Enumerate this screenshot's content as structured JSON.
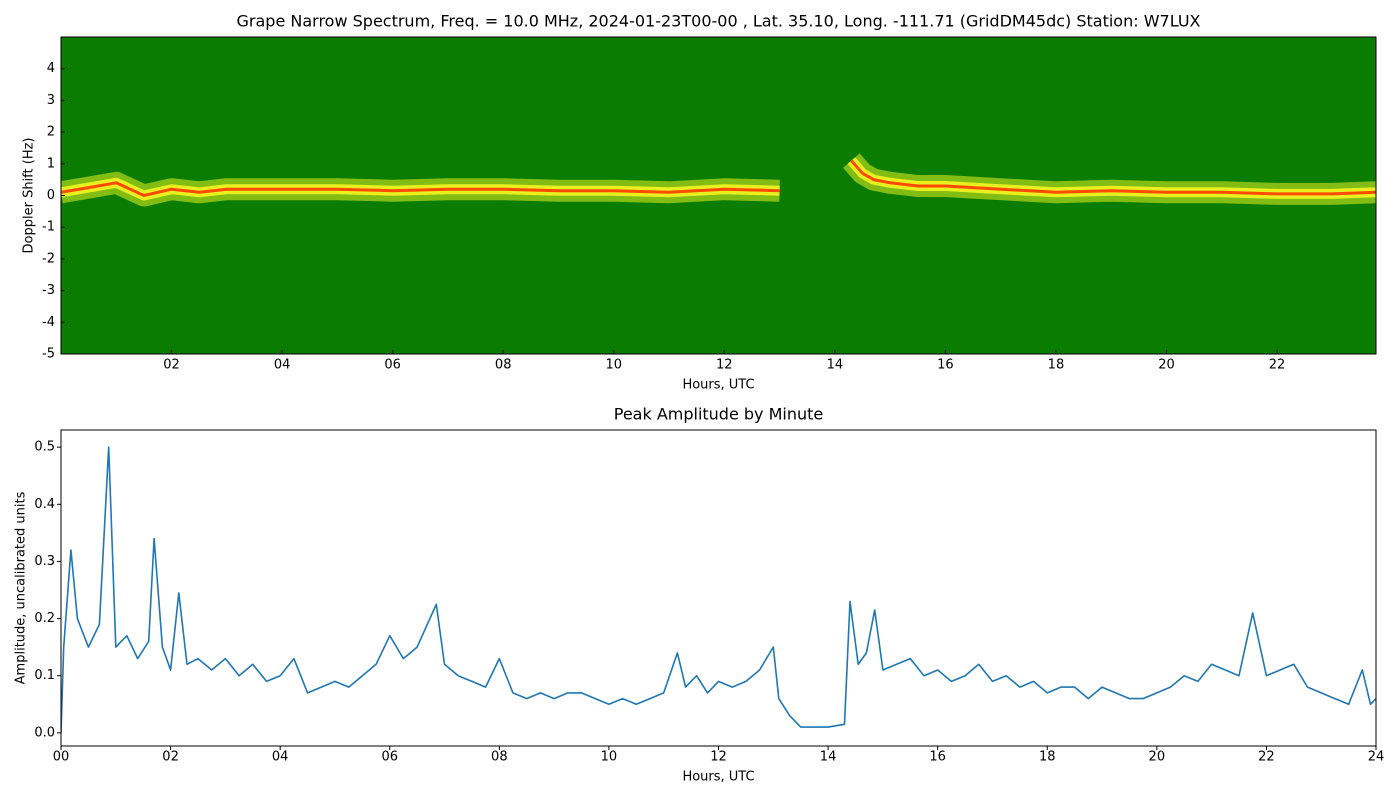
{
  "chart_data": [
    {
      "type": "spectrogram",
      "title": "Grape Narrow Spectrum, Freq. = 10.0 MHz, 2024-01-23T00-00 , Lat.  35.10, Long. -111.71 (GridDM45dc) Station: W7LUX",
      "x_label": "Hours, UTC",
      "y_label": "Doppler Shift (Hz)",
      "background_color": "#0a7d00",
      "band_color": "#e8f020",
      "xlim": [
        0,
        23.79
      ],
      "ylim": [
        -5,
        5
      ],
      "xticks": [
        {
          "value": 2,
          "label": "02"
        },
        {
          "value": 4,
          "label": "04"
        },
        {
          "value": 6,
          "label": "06"
        },
        {
          "value": 8,
          "label": "08"
        },
        {
          "value": 10,
          "label": "10"
        },
        {
          "value": 12,
          "label": "12"
        },
        {
          "value": 14,
          "label": "14"
        },
        {
          "value": 16,
          "label": "16"
        },
        {
          "value": 18,
          "label": "18"
        },
        {
          "value": 20,
          "label": "20"
        },
        {
          "value": 22,
          "label": "22"
        }
      ],
      "yticks": [
        -5,
        -4,
        -3,
        -2,
        -1,
        0,
        1,
        2,
        3,
        4
      ],
      "x": [
        0,
        0.5,
        1,
        1.5,
        2,
        2.5,
        3,
        4,
        5,
        6,
        7,
        8,
        9,
        10,
        11,
        12,
        13,
        13.3,
        14.3,
        14.5,
        14.7,
        15,
        15.5,
        16,
        16.5,
        17,
        18,
        19,
        20,
        21,
        22,
        23,
        23.79
      ],
      "series": [
        {
          "color": "#ff4a00",
          "values": [
            0.1,
            0.25,
            0.4,
            0,
            0.2,
            0.1,
            0.2,
            0.2,
            0.2,
            0.15,
            0.2,
            0.2,
            0.15,
            0.15,
            0.1,
            0.2,
            0.15,
            null,
            1.1,
            0.7,
            0.5,
            0.4,
            0.3,
            0.3,
            0.25,
            0.2,
            0.1,
            0.15,
            0.1,
            0.1,
            0.05,
            0.05,
            0.1
          ]
        }
      ]
    },
    {
      "type": "line",
      "title": "Peak Amplitude by Minute",
      "x_label": "Hours, UTC",
      "y_label": "Amplitude, uncalibrated units",
      "xlim": [
        0,
        24
      ],
      "ylim": [
        -0.023,
        0.53
      ],
      "xticks": [
        {
          "value": 0,
          "label": "00"
        },
        {
          "value": 2,
          "label": "02"
        },
        {
          "value": 4,
          "label": "04"
        },
        {
          "value": 6,
          "label": "06"
        },
        {
          "value": 8,
          "label": "08"
        },
        {
          "value": 10,
          "label": "10"
        },
        {
          "value": 12,
          "label": "12"
        },
        {
          "value": 14,
          "label": "14"
        },
        {
          "value": 16,
          "label": "16"
        },
        {
          "value": 18,
          "label": "18"
        },
        {
          "value": 20,
          "label": "20"
        },
        {
          "value": 22,
          "label": "22"
        },
        {
          "value": 24,
          "label": "24"
        }
      ],
      "yticks": [
        {
          "value": 0,
          "label": "0.0"
        },
        0.1,
        0.2,
        0.3,
        0.4,
        0.5
      ],
      "x": [
        0,
        0.05,
        0.18,
        0.3,
        0.5,
        0.7,
        0.87,
        1.0,
        1.2,
        1.4,
        1.6,
        1.7,
        1.85,
        2.0,
        2.15,
        2.3,
        2.5,
        2.75,
        3.0,
        3.25,
        3.5,
        3.75,
        4.0,
        4.25,
        4.5,
        4.75,
        5.0,
        5.25,
        5.5,
        5.75,
        6.0,
        6.25,
        6.5,
        6.85,
        7.0,
        7.25,
        7.5,
        7.75,
        8.0,
        8.25,
        8.5,
        8.75,
        9.0,
        9.25,
        9.5,
        9.75,
        10.0,
        10.25,
        10.5,
        10.75,
        11.0,
        11.25,
        11.4,
        11.6,
        11.8,
        12.0,
        12.25,
        12.5,
        12.75,
        13.0,
        13.1,
        13.3,
        13.5,
        13.75,
        14.0,
        14.3,
        14.4,
        14.55,
        14.7,
        14.85,
        15.0,
        15.25,
        15.5,
        15.75,
        16.0,
        16.25,
        16.5,
        16.75,
        17.0,
        17.25,
        17.5,
        17.75,
        18.0,
        18.25,
        18.5,
        18.75,
        19.0,
        19.25,
        19.5,
        19.75,
        20.0,
        20.25,
        20.5,
        20.75,
        21.0,
        21.25,
        21.5,
        21.75,
        22.0,
        22.25,
        22.5,
        22.75,
        23.0,
        23.25,
        23.5,
        23.75,
        23.9,
        24.0
      ],
      "series": [
        {
          "color": "#1f77b4",
          "values": [
            0.0,
            0.15,
            0.32,
            0.2,
            0.15,
            0.19,
            0.5,
            0.15,
            0.17,
            0.13,
            0.16,
            0.34,
            0.15,
            0.11,
            0.245,
            0.12,
            0.13,
            0.11,
            0.13,
            0.1,
            0.12,
            0.09,
            0.1,
            0.13,
            0.07,
            0.08,
            0.09,
            0.08,
            0.1,
            0.12,
            0.17,
            0.13,
            0.15,
            0.225,
            0.12,
            0.1,
            0.09,
            0.08,
            0.13,
            0.07,
            0.06,
            0.07,
            0.06,
            0.07,
            0.07,
            0.06,
            0.05,
            0.06,
            0.05,
            0.06,
            0.07,
            0.14,
            0.08,
            0.1,
            0.07,
            0.09,
            0.08,
            0.09,
            0.11,
            0.15,
            0.06,
            0.03,
            0.01,
            0.01,
            0.01,
            0.015,
            0.23,
            0.12,
            0.14,
            0.215,
            0.11,
            0.12,
            0.13,
            0.1,
            0.11,
            0.09,
            0.1,
            0.12,
            0.09,
            0.1,
            0.08,
            0.09,
            0.07,
            0.08,
            0.08,
            0.06,
            0.08,
            0.07,
            0.06,
            0.06,
            0.07,
            0.08,
            0.1,
            0.09,
            0.12,
            0.11,
            0.1,
            0.21,
            0.1,
            0.11,
            0.12,
            0.08,
            0.07,
            0.06,
            0.05,
            0.11,
            0.05,
            0.06
          ]
        }
      ]
    }
  ]
}
